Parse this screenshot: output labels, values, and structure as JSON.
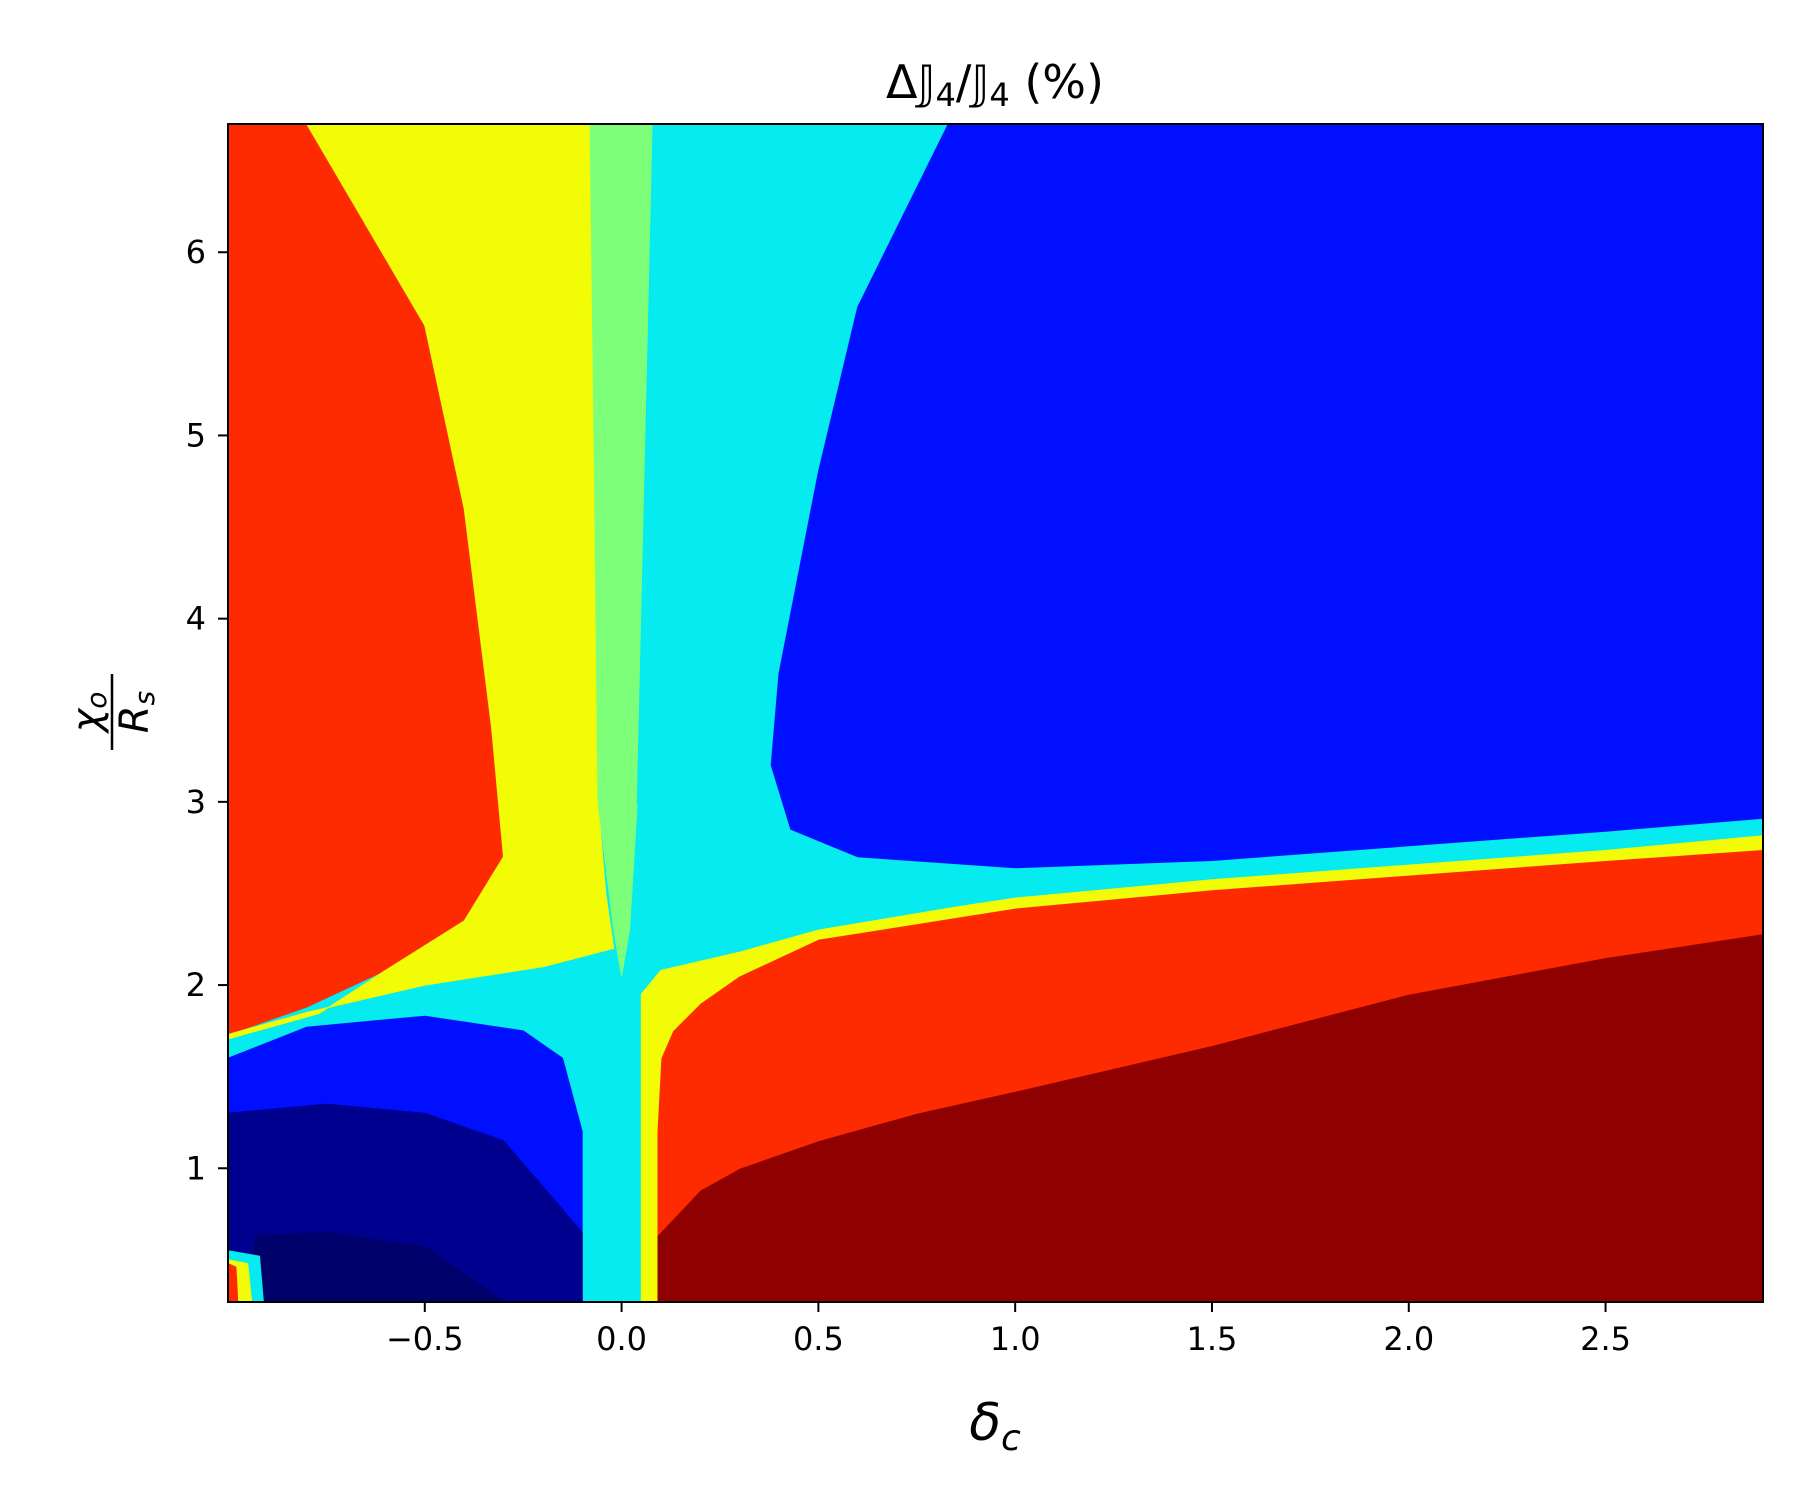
{
  "chart_data": {
    "type": "heatmap",
    "subtype": "filled-contour",
    "title": "ΔJ4/J4 (%)",
    "title_parts": {
      "delta": "Δ",
      "symbol": "𝕁",
      "sub": "4",
      "slash": "/",
      "suffix": " (%)"
    },
    "xlabel": "δc",
    "xlabel_parts": {
      "main": "δ",
      "sub": "c"
    },
    "ylabel": "χo/Rs",
    "ylabel_parts": {
      "num": "χ",
      "num_sub": "o",
      "den": "R",
      "den_sub": "s"
    },
    "xlim": [
      -1.0,
      2.9
    ],
    "ylim": [
      0.27,
      6.7
    ],
    "x_ticks": [
      -0.5,
      0.0,
      0.5,
      1.0,
      1.5,
      2.0,
      2.5
    ],
    "x_tick_labels": [
      "−0.5",
      "0.0",
      "0.5",
      "1.0",
      "1.5",
      "2.0",
      "2.5"
    ],
    "y_ticks": [
      1,
      2,
      3,
      4,
      5,
      6
    ],
    "y_tick_labels": [
      "1",
      "2",
      "3",
      "4",
      "5",
      "6"
    ],
    "grid": false,
    "colormap": "jet",
    "levels": [
      {
        "name": "darkest-navy",
        "color": "#00006a"
      },
      {
        "name": "navy",
        "color": "#00008f"
      },
      {
        "name": "blue",
        "color": "#0010ff"
      },
      {
        "name": "cyan",
        "color": "#05ebef"
      },
      {
        "name": "green",
        "color": "#7dff7a"
      },
      {
        "name": "yellow",
        "color": "#f1fc06"
      },
      {
        "name": "red-orange",
        "color": "#ff2b00"
      },
      {
        "name": "dark-red",
        "color": "#8f0000"
      }
    ],
    "regions": [
      {
        "name": "dark-red",
        "color": "#8f0000",
        "points": [
          [
            0.09,
            0.27
          ],
          [
            0.09,
            0.63
          ],
          [
            0.2,
            0.88
          ],
          [
            0.3,
            1.0
          ],
          [
            0.5,
            1.15
          ],
          [
            0.75,
            1.3
          ],
          [
            1.0,
            1.42
          ],
          [
            1.5,
            1.67
          ],
          [
            2.0,
            1.95
          ],
          [
            2.5,
            2.15
          ],
          [
            2.9,
            2.28
          ],
          [
            2.9,
            0.27
          ]
        ]
      },
      {
        "name": "red-orange-right",
        "color": "#ff2b00",
        "points": [
          [
            0.09,
            0.27
          ],
          [
            0.09,
            0.63
          ],
          [
            0.2,
            0.88
          ],
          [
            0.3,
            1.0
          ],
          [
            0.5,
            1.15
          ],
          [
            0.75,
            1.3
          ],
          [
            1.0,
            1.42
          ],
          [
            1.5,
            1.67
          ],
          [
            2.0,
            1.95
          ],
          [
            2.5,
            2.15
          ],
          [
            2.9,
            2.28
          ],
          [
            2.9,
            2.74
          ],
          [
            2.5,
            2.68
          ],
          [
            2.0,
            2.6
          ],
          [
            1.5,
            2.52
          ],
          [
            1.0,
            2.42
          ],
          [
            0.5,
            2.25
          ],
          [
            0.3,
            2.05
          ],
          [
            0.2,
            1.9
          ],
          [
            0.13,
            1.75
          ],
          [
            0.1,
            1.6
          ],
          [
            0.09,
            1.2
          ]
        ]
      },
      {
        "name": "yellow-right",
        "color": "#f1fc06",
        "points": [
          [
            0.05,
            0.27
          ],
          [
            0.09,
            0.27
          ],
          [
            0.09,
            1.2
          ],
          [
            0.1,
            1.6
          ],
          [
            0.13,
            1.75
          ],
          [
            0.2,
            1.9
          ],
          [
            0.3,
            2.05
          ],
          [
            0.5,
            2.25
          ],
          [
            1.0,
            2.42
          ],
          [
            1.5,
            2.52
          ],
          [
            2.0,
            2.6
          ],
          [
            2.5,
            2.68
          ],
          [
            2.9,
            2.74
          ],
          [
            2.9,
            2.82
          ],
          [
            2.5,
            2.74
          ],
          [
            2.0,
            2.66
          ],
          [
            1.5,
            2.58
          ],
          [
            1.0,
            2.48
          ],
          [
            0.5,
            2.3
          ],
          [
            0.3,
            2.18
          ],
          [
            0.1,
            2.08
          ],
          [
            0.05,
            1.95
          ]
        ]
      },
      {
        "name": "red-orange-left",
        "color": "#ff2b00",
        "points": [
          [
            -1.0,
            6.7
          ],
          [
            -0.8,
            6.7
          ],
          [
            -0.5,
            5.6
          ],
          [
            -0.4,
            4.6
          ],
          [
            -0.33,
            3.4
          ],
          [
            -0.3,
            2.7
          ],
          [
            -0.4,
            2.35
          ],
          [
            -0.6,
            2.08
          ],
          [
            -0.8,
            1.88
          ],
          [
            -1.0,
            1.73
          ]
        ]
      },
      {
        "name": "yellow-left",
        "color": "#f1fc06",
        "points": [
          [
            -0.8,
            6.7
          ],
          [
            -0.08,
            6.7
          ],
          [
            -0.07,
            5.0
          ],
          [
            -0.06,
            3.0
          ],
          [
            -0.04,
            2.5
          ],
          [
            -0.02,
            2.2
          ],
          [
            -0.2,
            2.1
          ],
          [
            -0.5,
            2.0
          ],
          [
            -0.8,
            1.85
          ],
          [
            -1.0,
            1.73
          ],
          [
            -1.0,
            1.68
          ],
          [
            -0.8,
            1.8
          ],
          [
            -0.6,
            2.08
          ],
          [
            -0.4,
            2.35
          ],
          [
            -0.3,
            2.7
          ],
          [
            -0.33,
            3.4
          ],
          [
            -0.4,
            4.6
          ],
          [
            -0.5,
            5.6
          ]
        ]
      },
      {
        "name": "green",
        "color": "#7dff7a",
        "points": [
          [
            -0.08,
            6.7
          ],
          [
            0.08,
            6.7
          ],
          [
            0.04,
            3.0
          ],
          [
            0.02,
            2.3
          ],
          [
            0.0,
            2.05
          ],
          [
            -0.02,
            2.3
          ],
          [
            -0.06,
            3.0
          ],
          [
            -0.07,
            5.0
          ]
        ]
      },
      {
        "name": "cyan-upper",
        "color": "#05ebef",
        "points": [
          [
            0.08,
            6.7
          ],
          [
            0.83,
            6.7
          ],
          [
            0.6,
            5.7
          ],
          [
            0.5,
            4.8
          ],
          [
            0.4,
            3.7
          ],
          [
            0.38,
            3.2
          ],
          [
            0.43,
            2.85
          ],
          [
            0.6,
            2.7
          ],
          [
            1.0,
            2.64
          ],
          [
            1.5,
            2.68
          ],
          [
            2.0,
            2.76
          ],
          [
            2.5,
            2.84
          ],
          [
            2.9,
            2.91
          ],
          [
            2.9,
            2.82
          ],
          [
            2.5,
            2.74
          ],
          [
            2.0,
            2.66
          ],
          [
            1.5,
            2.58
          ],
          [
            1.0,
            2.48
          ],
          [
            0.5,
            2.32
          ],
          [
            0.3,
            2.25
          ],
          [
            0.18,
            2.26
          ],
          [
            0.08,
            2.4
          ],
          [
            0.04,
            3.0
          ]
        ]
      },
      {
        "name": "cyan-lower",
        "color": "#05ebef",
        "points": [
          [
            -1.0,
            1.6
          ],
          [
            -1.0,
            1.7
          ],
          [
            -0.7,
            1.88
          ],
          [
            -0.4,
            1.98
          ],
          [
            -0.1,
            2.02
          ],
          [
            -0.06,
            1.8
          ],
          [
            -0.05,
            1.3
          ],
          [
            -0.05,
            0.27
          ],
          [
            -0.1,
            0.27
          ],
          [
            -0.1,
            1.2
          ],
          [
            -0.15,
            1.6
          ],
          [
            -0.25,
            1.75
          ],
          [
            -0.5,
            1.83
          ],
          [
            -0.8,
            1.77
          ]
        ]
      },
      {
        "name": "blue-upper",
        "color": "#0010ff",
        "points": [
          [
            0.83,
            6.7
          ],
          [
            2.9,
            6.7
          ],
          [
            2.9,
            2.91
          ],
          [
            2.5,
            2.84
          ],
          [
            2.0,
            2.76
          ],
          [
            1.5,
            2.68
          ],
          [
            1.0,
            2.64
          ],
          [
            0.6,
            2.7
          ],
          [
            0.43,
            2.85
          ],
          [
            0.38,
            3.2
          ],
          [
            0.4,
            3.7
          ],
          [
            0.5,
            4.8
          ],
          [
            0.6,
            5.7
          ]
        ]
      },
      {
        "name": "blue-lower",
        "color": "#0010ff",
        "points": [
          [
            -1.0,
            0.27
          ],
          [
            -1.0,
            1.6
          ],
          [
            -0.8,
            1.77
          ],
          [
            -0.5,
            1.83
          ],
          [
            -0.25,
            1.75
          ],
          [
            -0.15,
            1.6
          ],
          [
            -0.1,
            1.2
          ],
          [
            -0.1,
            0.27
          ]
        ]
      },
      {
        "name": "navy",
        "color": "#00008f",
        "points": [
          [
            -1.0,
            0.27
          ],
          [
            -1.0,
            1.3
          ],
          [
            -0.75,
            1.35
          ],
          [
            -0.5,
            1.3
          ],
          [
            -0.3,
            1.15
          ],
          [
            -0.2,
            0.9
          ],
          [
            -0.1,
            0.65
          ],
          [
            -0.1,
            0.27
          ]
        ]
      },
      {
        "name": "darkest-navy",
        "color": "#00006a",
        "points": [
          [
            -0.95,
            0.27
          ],
          [
            -0.93,
            0.63
          ],
          [
            -0.75,
            0.65
          ],
          [
            -0.5,
            0.57
          ],
          [
            -0.35,
            0.35
          ],
          [
            -0.3,
            0.27
          ]
        ]
      },
      {
        "name": "corner-cyan",
        "color": "#05ebef",
        "points": [
          [
            -1.0,
            0.27
          ],
          [
            -1.0,
            0.55
          ],
          [
            -0.92,
            0.52
          ],
          [
            -0.91,
            0.27
          ]
        ]
      },
      {
        "name": "corner-yellow",
        "color": "#f1fc06",
        "points": [
          [
            -1.0,
            0.27
          ],
          [
            -1.0,
            0.5
          ],
          [
            -0.95,
            0.48
          ],
          [
            -0.94,
            0.27
          ]
        ]
      },
      {
        "name": "corner-red",
        "color": "#ff2b00",
        "points": [
          [
            -1.0,
            0.27
          ],
          [
            -1.0,
            0.48
          ],
          [
            -0.98,
            0.46
          ],
          [
            -0.975,
            0.27
          ]
        ]
      }
    ]
  }
}
